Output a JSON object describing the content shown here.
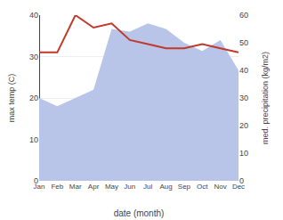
{
  "chart_data": {
    "type": "line",
    "categories": [
      "Jan",
      "Feb",
      "Mar",
      "Apr",
      "May",
      "Jun",
      "Jul",
      "Aug",
      "Sep",
      "Oct",
      "Nov",
      "Dec"
    ],
    "xlabel": "date (month)",
    "ylabel": "max temp (C)",
    "y2label": "med. precipitation (kg/m2)",
    "ylim": [
      0,
      40
    ],
    "yticks": [
      0,
      10,
      20,
      30,
      40
    ],
    "y2lim": [
      0,
      60
    ],
    "y2ticks": [
      0,
      10,
      20,
      30,
      40,
      50,
      60
    ],
    "grid": true,
    "series": [
      {
        "type": "area",
        "axis": "y2",
        "color": "#b8c4e8",
        "values": [
          30,
          27,
          30,
          33,
          55,
          54,
          57,
          55,
          50,
          47,
          51,
          40
        ]
      },
      {
        "type": "line",
        "color": "#c0392b",
        "values": [
          31,
          31,
          40,
          37,
          38,
          34,
          33,
          32,
          32,
          33,
          32,
          31
        ]
      }
    ]
  }
}
